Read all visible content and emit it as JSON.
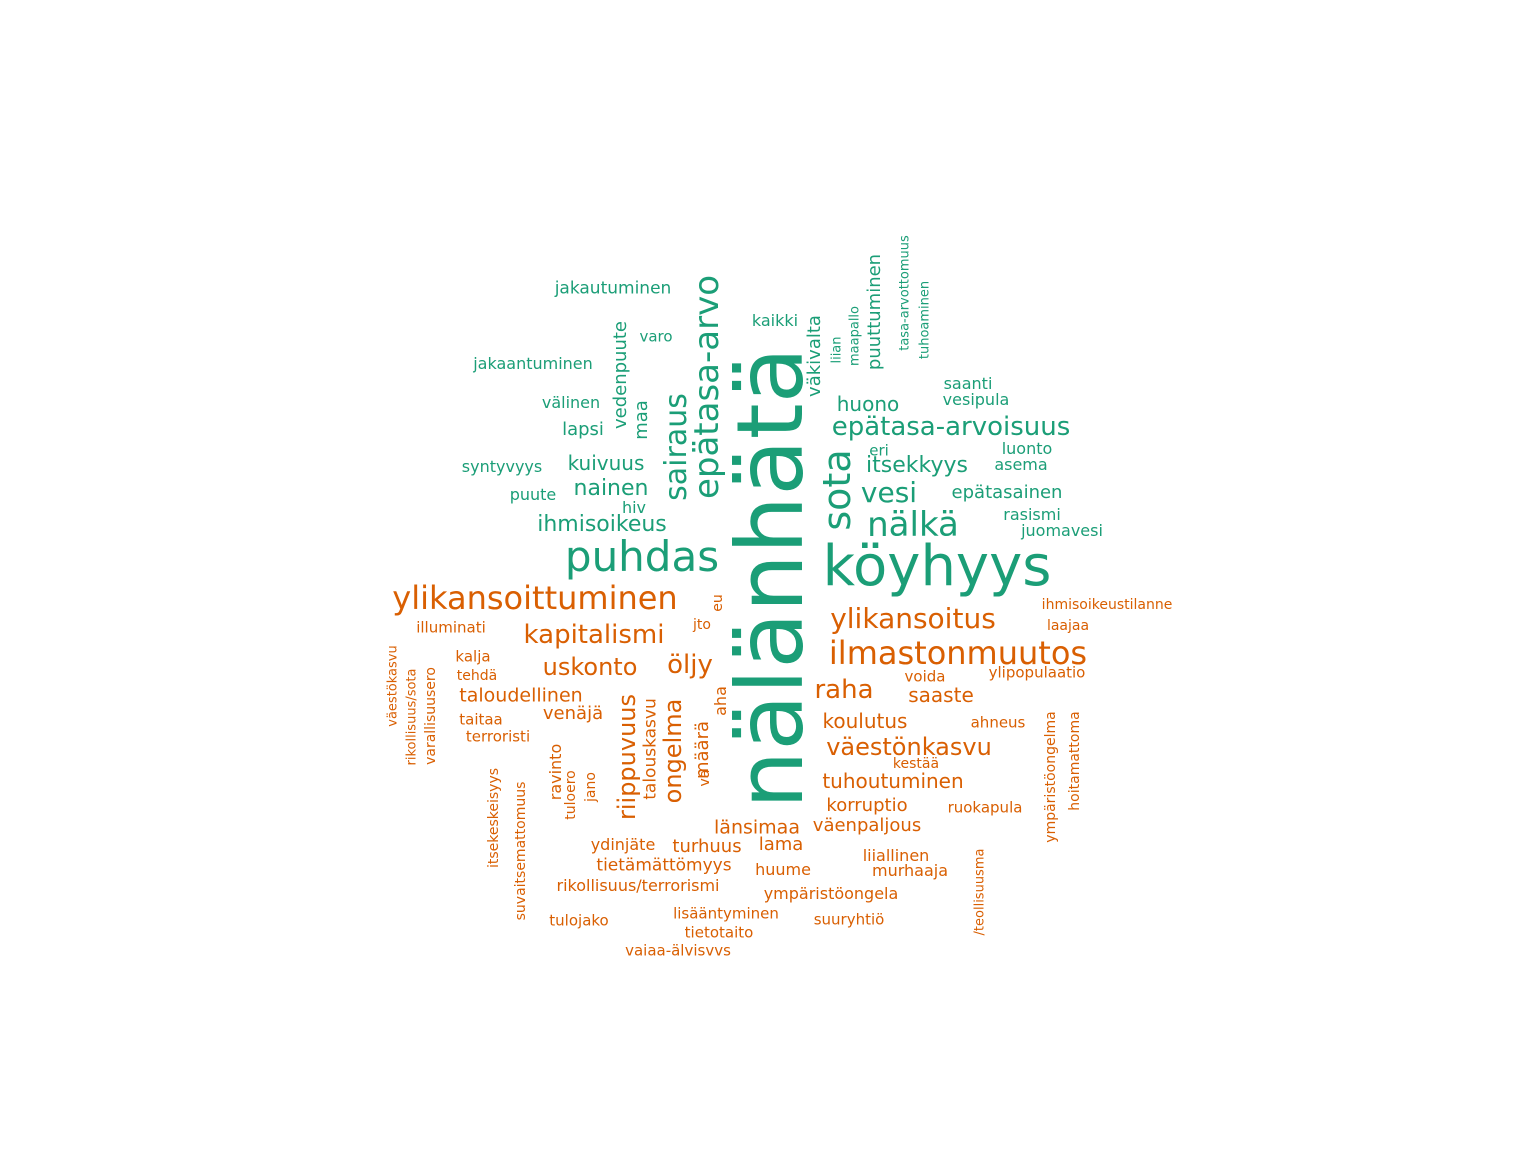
{
  "colors": {
    "group_a": "#1b9e77",
    "group_b": "#d95f02",
    "background": "#ffffff"
  },
  "words": [
    {
      "text": "nälänhätä",
      "group": "a"
    },
    {
      "text": "köyhyys",
      "group": "a"
    },
    {
      "text": "puhdas",
      "group": "a"
    },
    {
      "text": "epätasa-arvo",
      "group": "a"
    },
    {
      "text": "sairaus",
      "group": "a"
    },
    {
      "text": "sota",
      "group": "a"
    },
    {
      "text": "nälkä",
      "group": "a"
    },
    {
      "text": "vesi",
      "group": "a"
    },
    {
      "text": "epätasa-arvoisuus",
      "group": "a"
    },
    {
      "text": "itsekkyys",
      "group": "a"
    },
    {
      "text": "nainen",
      "group": "a"
    },
    {
      "text": "ihmisoikeus",
      "group": "a"
    },
    {
      "text": "kuivuus",
      "group": "a"
    },
    {
      "text": "huono",
      "group": "a"
    },
    {
      "text": "epätasainen",
      "group": "a"
    },
    {
      "text": "lapsi",
      "group": "a"
    },
    {
      "text": "välinen",
      "group": "a"
    },
    {
      "text": "väkivalta",
      "group": "a"
    },
    {
      "text": "puuttuminen",
      "group": "a"
    },
    {
      "text": "maa",
      "group": "a"
    },
    {
      "text": "vedenpuute",
      "group": "a"
    },
    {
      "text": "jakautuminen",
      "group": "a"
    },
    {
      "text": "jakaantuminen",
      "group": "a"
    },
    {
      "text": "syntyvyys",
      "group": "a"
    },
    {
      "text": "puute",
      "group": "a"
    },
    {
      "text": "hiv",
      "group": "a"
    },
    {
      "text": "varo",
      "group": "a"
    },
    {
      "text": "kaikki",
      "group": "a"
    },
    {
      "text": "liian",
      "group": "a"
    },
    {
      "text": "maapallo",
      "group": "a"
    },
    {
      "text": "tasa-arvottomuus",
      "group": "a"
    },
    {
      "text": "tuhoaminen",
      "group": "a"
    },
    {
      "text": "saanti",
      "group": "a"
    },
    {
      "text": "vesipula",
      "group": "a"
    },
    {
      "text": "eri",
      "group": "a"
    },
    {
      "text": "luonto",
      "group": "a"
    },
    {
      "text": "asema",
      "group": "a"
    },
    {
      "text": "rasismi",
      "group": "a"
    },
    {
      "text": "juomavesi",
      "group": "a"
    },
    {
      "text": "ylikansoittuminen",
      "group": "b"
    },
    {
      "text": "ilmastonmuutos",
      "group": "b"
    },
    {
      "text": "ylikansoitus",
      "group": "b"
    },
    {
      "text": "kapitalismi",
      "group": "b"
    },
    {
      "text": "uskonto",
      "group": "b"
    },
    {
      "text": "öljy",
      "group": "b"
    },
    {
      "text": "raha",
      "group": "b"
    },
    {
      "text": "väestönkasvu",
      "group": "b"
    },
    {
      "text": "riippuvuus",
      "group": "b"
    },
    {
      "text": "ongelma",
      "group": "b"
    },
    {
      "text": "tuhoutuminen",
      "group": "b"
    },
    {
      "text": "koulutus",
      "group": "b"
    },
    {
      "text": "saaste",
      "group": "b"
    },
    {
      "text": "taloudellinen",
      "group": "b"
    },
    {
      "text": "talouskasvu",
      "group": "b"
    },
    {
      "text": "länsimaa",
      "group": "b"
    },
    {
      "text": "väenpaljous",
      "group": "b"
    },
    {
      "text": "korruptio",
      "group": "b"
    },
    {
      "text": "venäjä",
      "group": "b"
    },
    {
      "text": "määrä",
      "group": "b"
    },
    {
      "text": "aha",
      "group": "b"
    },
    {
      "text": "eu",
      "group": "b"
    },
    {
      "text": "jto",
      "group": "b"
    },
    {
      "text": "va",
      "group": "b"
    },
    {
      "text": "turhuus",
      "group": "b"
    },
    {
      "text": "lama",
      "group": "b"
    },
    {
      "text": "ydinjäte",
      "group": "b"
    },
    {
      "text": "tietämättömyys",
      "group": "b"
    },
    {
      "text": "huume",
      "group": "b"
    },
    {
      "text": "rikollisuus/terrorismi",
      "group": "b"
    },
    {
      "text": "ympäristöongela",
      "group": "b"
    },
    {
      "text": "lisääntyminen",
      "group": "b"
    },
    {
      "text": "tulojako",
      "group": "b"
    },
    {
      "text": "tietotaito",
      "group": "b"
    },
    {
      "text": "vaiaa-älvisvvs",
      "group": "b"
    },
    {
      "text": "suuryhtiö",
      "group": "b"
    },
    {
      "text": "liiallinen",
      "group": "b"
    },
    {
      "text": "murhaaja",
      "group": "b"
    },
    {
      "text": "ruokapula",
      "group": "b"
    },
    {
      "text": "kestää",
      "group": "b"
    },
    {
      "text": "ahneus",
      "group": "b"
    },
    {
      "text": "voida",
      "group": "b"
    },
    {
      "text": "ylipopulaatio",
      "group": "b"
    },
    {
      "text": "ihmisoikeustilanne",
      "group": "b"
    },
    {
      "text": "laajaa",
      "group": "b"
    },
    {
      "text": "illuminati",
      "group": "b"
    },
    {
      "text": "kalja",
      "group": "b"
    },
    {
      "text": "tehdä",
      "group": "b"
    },
    {
      "text": "taitaa",
      "group": "b"
    },
    {
      "text": "terroristi",
      "group": "b"
    },
    {
      "text": "väestökasvu",
      "group": "b"
    },
    {
      "text": "rikollisuus/sota",
      "group": "b"
    },
    {
      "text": "varallisuusero",
      "group": "b"
    },
    {
      "text": "itsekeskeisyys",
      "group": "b"
    },
    {
      "text": "suvaitsemattomuus",
      "group": "b"
    },
    {
      "text": "ravinto",
      "group": "b"
    },
    {
      "text": "tuloero",
      "group": "b"
    },
    {
      "text": "jano",
      "group": "b"
    },
    {
      "text": "ympäristöongelma",
      "group": "b"
    },
    {
      "text": "hoitamattoma",
      "group": "b"
    },
    {
      "text": "/teollisuusma",
      "group": "b"
    }
  ]
}
